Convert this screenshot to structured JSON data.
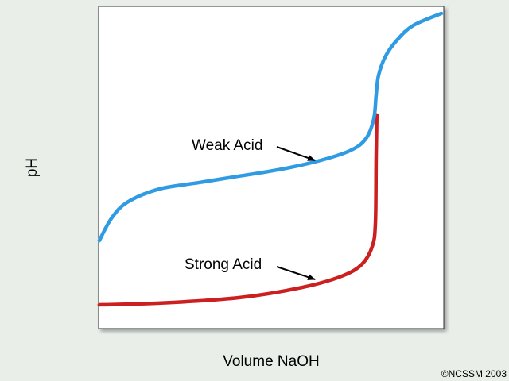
{
  "chart_data": {
    "type": "line",
    "title": "",
    "xlabel": "Volume NaOH",
    "ylabel": "pH",
    "xlim": [
      0,
      100
    ],
    "ylim": [
      0,
      100
    ],
    "grid": false,
    "ticks": false,
    "series": [
      {
        "name": "Weak Acid",
        "color": "#2f9be3",
        "x": [
          0.2,
          3.7,
          8.3,
          17.5,
          29,
          40.6,
          52.1,
          63.6,
          72.8,
          77.4,
          79.7,
          80.4,
          81.1,
          83.2,
          86.6,
          91.2,
          99.3
        ],
        "y": [
          27.3,
          34.2,
          39.2,
          43.3,
          45.3,
          47.3,
          49.3,
          52,
          55.2,
          58.9,
          65,
          72.4,
          78.6,
          84.7,
          89.7,
          94.1,
          97.8
        ]
      },
      {
        "name": "Strong Acid",
        "color": "#cc1f1f",
        "x": [
          0.2,
          17.5,
          40.6,
          59,
          70.5,
          76.3,
          79.3,
          80.2,
          80.4,
          80.6
        ],
        "y": [
          7.4,
          7.9,
          9.6,
          12.8,
          16.3,
          20,
          25.6,
          33,
          52.7,
          66.3
        ]
      }
    ],
    "annotations": [
      {
        "text": "Weak Acid",
        "points_to_series": "Weak Acid"
      },
      {
        "text": "Strong Acid",
        "points_to_series": "Strong Acid"
      }
    ]
  },
  "footer": {
    "copyright": "©NCSSM 2003"
  }
}
